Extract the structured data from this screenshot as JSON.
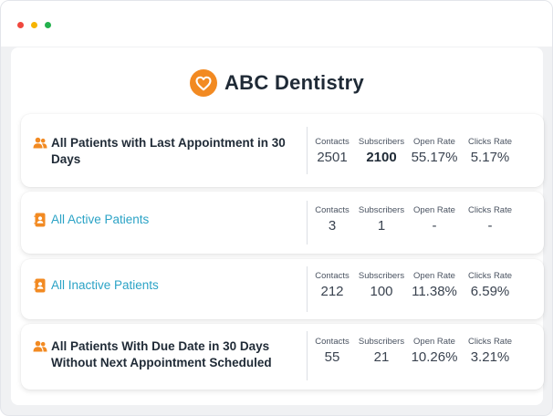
{
  "window": {
    "colors": {
      "close": "#f0483e",
      "minimize": "#f6b400",
      "maximize": "#23b14d"
    }
  },
  "brand": {
    "name": "ABC Dentistry",
    "logo_icon": "heart-icon",
    "accent": "#f28a22"
  },
  "stat_labels": {
    "contacts": "Contacts",
    "subscribers": "Subscribers",
    "open_rate": "Open Rate",
    "clicks_rate": "Clicks Rate"
  },
  "segments": [
    {
      "name": "All Patients with Last Appointment in 30 Days",
      "icon": "users-icon",
      "contacts": "2501",
      "subscribers": "2100",
      "open_rate": "55.17%",
      "clicks_rate": "5.17%"
    },
    {
      "name": "All Active Patients",
      "icon": "contact-card-icon",
      "contacts": "3",
      "subscribers": "1",
      "open_rate": "-",
      "clicks_rate": "-"
    },
    {
      "name": "All Inactive Patients",
      "icon": "contact-card-icon",
      "contacts": "212",
      "subscribers": "100",
      "open_rate": "11.38%",
      "clicks_rate": "6.59%"
    },
    {
      "name": "All Patients With Due Date in 30 Days Without Next Appointment Scheduled",
      "icon": "users-icon",
      "contacts": "55",
      "subscribers": "21",
      "open_rate": "10.26%",
      "clicks_rate": "3.21%"
    }
  ],
  "colors": {
    "title_text": "#1f2a36",
    "link_text": "#2ba3c6",
    "icon": "#f28a22"
  }
}
